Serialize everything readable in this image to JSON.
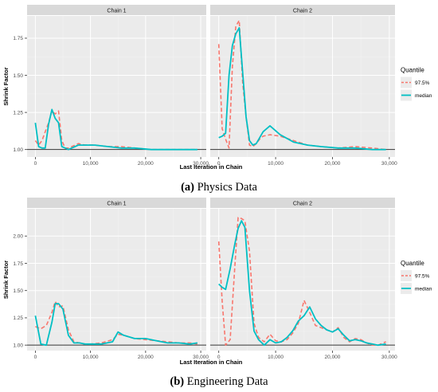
{
  "figures": [
    {
      "caption_tag": "(a)",
      "caption_text": "Physics Data"
    },
    {
      "caption_tag": "(b)",
      "caption_text": "Engineering Data"
    }
  ],
  "colors": {
    "panel_bg": "#ebebeb",
    "strip_bg": "#d9d9d9",
    "grid_major": "#ffffff",
    "grid_minor": "#f3f3f3",
    "quantile_975": "#f8766d",
    "median": "#00bfc4",
    "reference_line": "#333333"
  },
  "chart_data": [
    {
      "type": "line",
      "facets": [
        "Chain 1",
        "Chain 2"
      ],
      "xlabel": "Last Iteration in Chain",
      "ylabel": "Shrink Factor",
      "xlim": [
        -1500,
        31000
      ],
      "ylim": [
        0.95,
        1.9
      ],
      "xticks": [
        0,
        10000,
        20000,
        30000
      ],
      "xtick_labels": [
        "0",
        "10,000",
        "20,000",
        "30,000"
      ],
      "yticks": [
        1.0,
        1.25,
        1.5,
        1.75
      ],
      "ytick_labels": [
        "1.00",
        "1.25",
        "1.50",
        "1.75"
      ],
      "reference_y": 1.0,
      "legend_title": "Quantile",
      "legend_position": "right",
      "panels": [
        {
          "facet": "Chain 1",
          "series": [
            {
              "name": "97.5%",
              "style": "dashed",
              "x": [
                0,
                600,
                1200,
                1800,
                2400,
                3000,
                3600,
                4200,
                4800,
                5400,
                6000,
                6600,
                7200,
                7800,
                9000,
                10800,
                13200,
                15600,
                18000,
                21000,
                24000,
                27000,
                29400
              ],
              "y": [
                1.06,
                1.03,
                1.06,
                1.12,
                1.18,
                1.26,
                1.24,
                1.26,
                1.06,
                1.01,
                1.01,
                1.02,
                1.03,
                1.04,
                1.03,
                1.03,
                1.02,
                1.02,
                1.01,
                1.0,
                1.0,
                1.0,
                1.0
              ]
            },
            {
              "name": "median",
              "style": "solid",
              "x": [
                0,
                600,
                1200,
                1800,
                2400,
                3000,
                3600,
                4200,
                4800,
                5400,
                6000,
                6600,
                7200,
                7800,
                9000,
                10800,
                13200,
                15600,
                18000,
                21000,
                24000,
                27000,
                29400
              ],
              "y": [
                1.18,
                1.02,
                1.01,
                1.01,
                1.17,
                1.27,
                1.21,
                1.18,
                1.02,
                1.01,
                1.0,
                1.01,
                1.02,
                1.03,
                1.03,
                1.03,
                1.02,
                1.01,
                1.01,
                1.0,
                1.0,
                1.0,
                1.0
              ]
            }
          ]
        },
        {
          "facet": "Chain 2",
          "series": [
            {
              "name": "97.5%",
              "style": "dashed",
              "x": [
                0,
                600,
                1200,
                1800,
                2400,
                3000,
                3600,
                4200,
                4800,
                5400,
                6000,
                6600,
                7200,
                7800,
                9000,
                10800,
                13200,
                15600,
                18000,
                21000,
                24000,
                27000,
                29400
              ],
              "y": [
                1.71,
                1.14,
                1.07,
                1.01,
                1.56,
                1.83,
                1.87,
                1.45,
                1.22,
                1.03,
                1.02,
                1.04,
                1.07,
                1.09,
                1.1,
                1.09,
                1.06,
                1.03,
                1.02,
                1.01,
                1.02,
                1.01,
                1.0
              ]
            },
            {
              "name": "median",
              "style": "solid",
              "x": [
                0,
                600,
                1200,
                1800,
                2400,
                3000,
                3600,
                4200,
                4800,
                5400,
                6000,
                6600,
                7200,
                7800,
                9000,
                10800,
                13200,
                15600,
                18000,
                21000,
                24000,
                27000,
                29400
              ],
              "y": [
                1.08,
                1.09,
                1.11,
                1.5,
                1.7,
                1.78,
                1.82,
                1.52,
                1.22,
                1.06,
                1.03,
                1.04,
                1.08,
                1.12,
                1.16,
                1.1,
                1.05,
                1.03,
                1.02,
                1.01,
                1.01,
                1.0,
                1.0
              ]
            }
          ]
        }
      ]
    },
    {
      "type": "line",
      "facets": [
        "Chain 1",
        "Chain 2"
      ],
      "xlabel": "Last Iteration in Chain",
      "ylabel": "Shrink Factor",
      "xlim": [
        -1500,
        31000
      ],
      "ylim": [
        0.95,
        2.25
      ],
      "xticks": [
        0,
        10000,
        20000,
        30000
      ],
      "xtick_labels": [
        "0",
        "10,000",
        "20,000",
        "30,000"
      ],
      "yticks": [
        1.0,
        1.25,
        1.5,
        1.75,
        2.0
      ],
      "ytick_labels": [
        "1.00",
        "1.25",
        "1.50",
        "1.75",
        "2.00"
      ],
      "reference_y": 1.0,
      "legend_title": "Quantile",
      "legend_position": "right",
      "panels": [
        {
          "facet": "Chain 1",
          "series": [
            {
              "name": "97.5%",
              "style": "dashed",
              "x": [
                0,
                1000,
                2000,
                3000,
                3600,
                4200,
                5000,
                6000,
                7000,
                8000,
                9000,
                10000,
                12000,
                14000,
                15000,
                16000,
                18000,
                20000,
                22000,
                24000,
                26000,
                28000,
                29400
              ],
              "y": [
                1.17,
                1.15,
                1.18,
                1.3,
                1.4,
                1.35,
                1.36,
                1.14,
                1.03,
                1.02,
                1.01,
                1.01,
                1.02,
                1.05,
                1.1,
                1.09,
                1.06,
                1.05,
                1.04,
                1.03,
                1.02,
                1.02,
                1.01
              ]
            },
            {
              "name": "median",
              "style": "solid",
              "x": [
                0,
                1000,
                2000,
                3000,
                3600,
                4200,
                5000,
                6000,
                7000,
                8000,
                9000,
                10000,
                12000,
                14000,
                15000,
                16000,
                18000,
                20000,
                22000,
                24000,
                26000,
                28000,
                29400
              ],
              "y": [
                1.27,
                1.01,
                1.0,
                1.21,
                1.38,
                1.38,
                1.33,
                1.09,
                1.02,
                1.02,
                1.01,
                1.01,
                1.01,
                1.03,
                1.12,
                1.09,
                1.06,
                1.06,
                1.04,
                1.02,
                1.02,
                1.01,
                1.02
              ]
            }
          ]
        },
        {
          "facet": "Chain 2",
          "series": [
            {
              "name": "97.5%",
              "style": "dashed",
              "x": [
                0,
                600,
                1200,
                2000,
                2800,
                3400,
                4000,
                4600,
                5400,
                6200,
                7000,
                8000,
                9000,
                10000,
                11000,
                12000,
                13000,
                14000,
                15000,
                16000,
                17000,
                18000,
                19000,
                20000,
                21000,
                22000,
                23000,
                24000,
                25000,
                26000,
                27000,
                28000,
                29400
              ],
              "y": [
                1.95,
                1.4,
                1.0,
                1.05,
                1.7,
                2.17,
                2.16,
                2.14,
                1.86,
                1.2,
                1.07,
                1.03,
                1.1,
                1.04,
                1.03,
                1.05,
                1.11,
                1.2,
                1.41,
                1.3,
                1.18,
                1.16,
                1.14,
                1.12,
                1.16,
                1.07,
                1.03,
                1.06,
                1.05,
                1.02,
                1.0,
                1.0,
                1.03
              ]
            },
            {
              "name": "median",
              "style": "solid",
              "x": [
                0,
                600,
                1200,
                2000,
                2800,
                3400,
                4000,
                4600,
                5400,
                6200,
                7000,
                8000,
                9000,
                10000,
                11000,
                12000,
                13000,
                14000,
                15000,
                16000,
                17000,
                18000,
                19000,
                20000,
                21000,
                22000,
                23000,
                24000,
                25000,
                26000,
                27000,
                28000,
                29400
              ],
              "y": [
                1.56,
                1.53,
                1.51,
                1.7,
                1.92,
                2.07,
                2.14,
                2.08,
                1.5,
                1.13,
                1.05,
                1.0,
                1.05,
                1.02,
                1.03,
                1.07,
                1.13,
                1.22,
                1.27,
                1.35,
                1.24,
                1.18,
                1.14,
                1.12,
                1.15,
                1.09,
                1.04,
                1.05,
                1.04,
                1.02,
                1.01,
                1.0,
                1.01
              ]
            }
          ]
        }
      ]
    }
  ]
}
